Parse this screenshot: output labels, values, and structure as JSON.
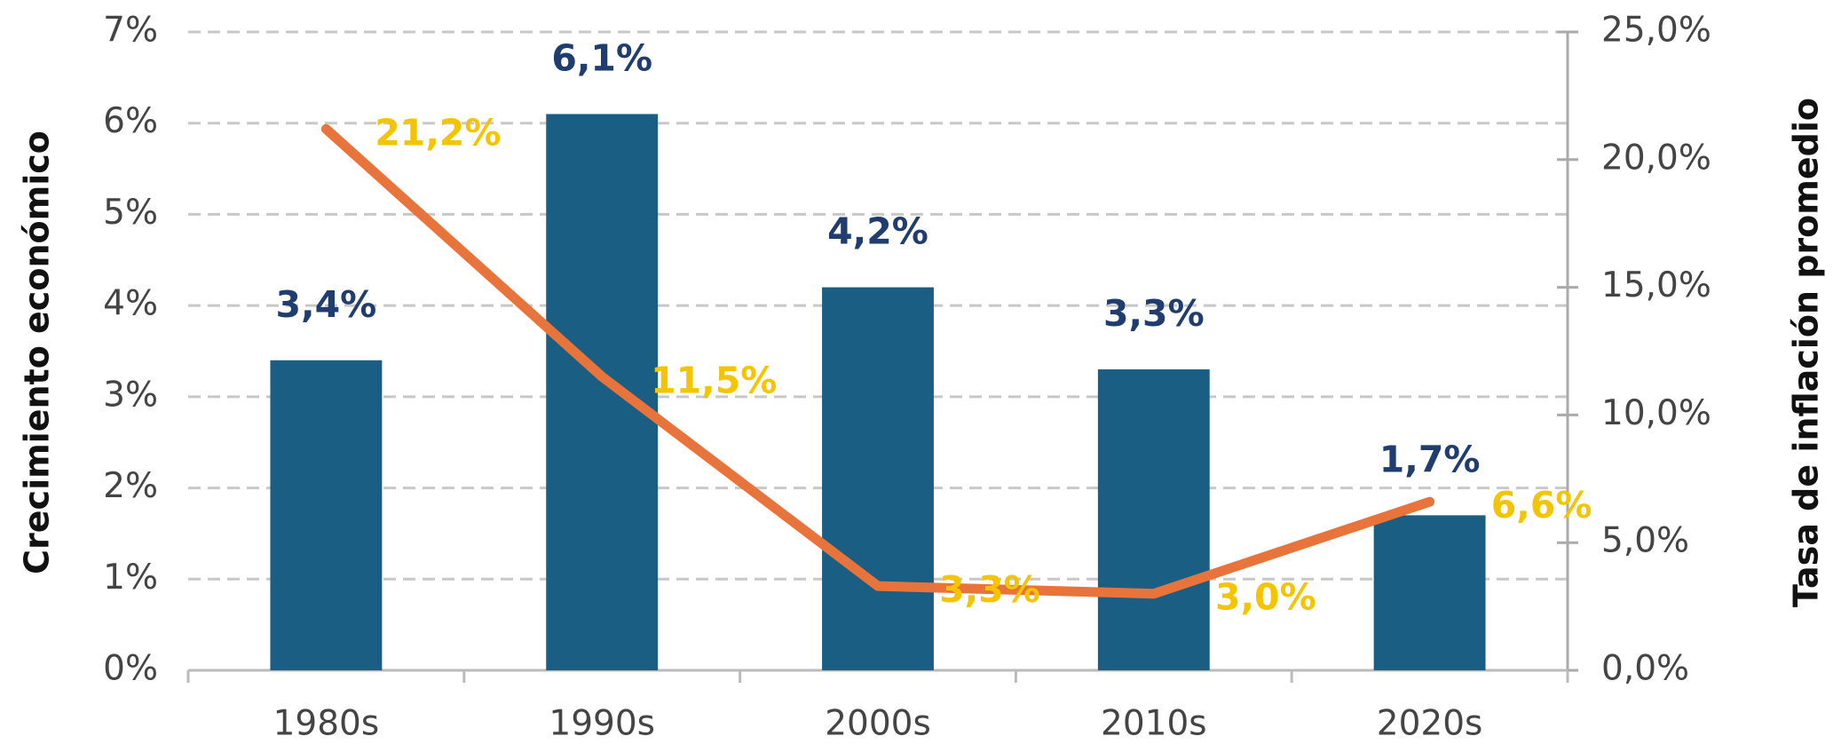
{
  "chart_data": {
    "type": "bar",
    "y_label": "Crecimiento económico",
    "y2_label": "Tasa de inflación promedio",
    "categories": [
      "1980s",
      "1990s",
      "2000s",
      "2010s",
      "2020s"
    ],
    "series": [
      {
        "type": "bar",
        "color": "#1a5e83",
        "values": [
          3.4,
          6.1,
          4.2,
          3.3,
          1.7
        ],
        "value_labels": [
          "3,4%",
          "6,1%",
          "4,2%",
          "3,3%",
          "1,7%"
        ]
      },
      {
        "type": "line",
        "axis": "y2",
        "color": "#e8743b",
        "label_color": "#f5c400",
        "values": [
          21.2,
          11.5,
          3.3,
          3.0,
          6.6
        ],
        "value_labels": [
          "21,2%",
          "11,5%",
          "3,3%",
          "3,0%",
          "6,6%"
        ]
      }
    ],
    "ylim": [
      0,
      7
    ],
    "yticks": [
      {
        "value": 0,
        "label": "0%"
      },
      {
        "value": 1,
        "label": "1%"
      },
      {
        "value": 2,
        "label": "2%"
      },
      {
        "value": 3,
        "label": "3%"
      },
      {
        "value": 4,
        "label": "4%"
      },
      {
        "value": 5,
        "label": "5%"
      },
      {
        "value": 6,
        "label": "6%"
      },
      {
        "value": 7,
        "label": "7%"
      }
    ],
    "y2lim": [
      0,
      25
    ],
    "y2ticks": [
      {
        "value": 0,
        "label": "0,0%"
      },
      {
        "value": 5,
        "label": "5,0%"
      },
      {
        "value": 10,
        "label": "10,0%"
      },
      {
        "value": 15,
        "label": "15,0%"
      },
      {
        "value": 20,
        "label": "20,0%"
      },
      {
        "value": 25,
        "label": "25,0%"
      }
    ],
    "grid": true
  }
}
